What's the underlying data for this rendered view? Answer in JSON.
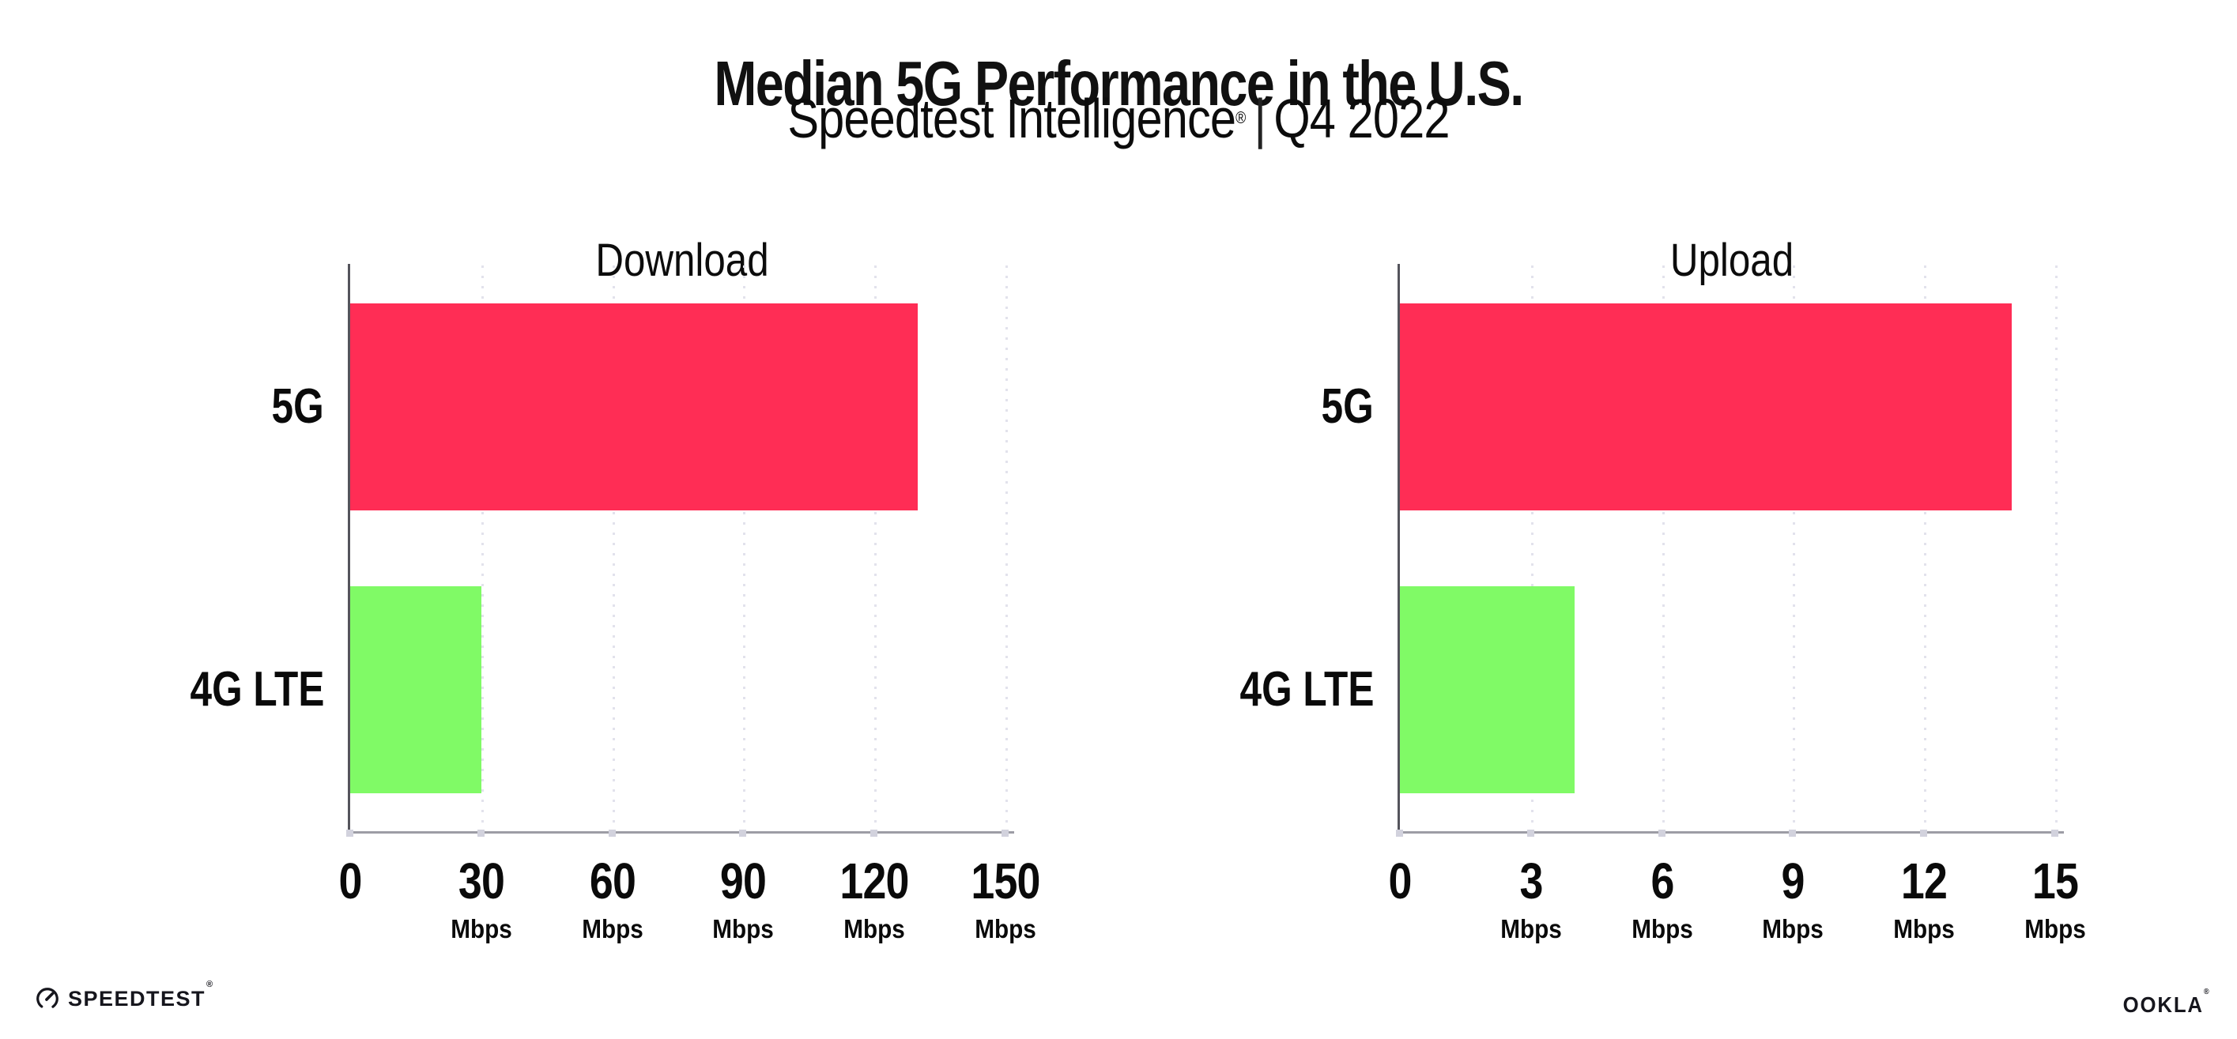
{
  "header": {
    "title": "Median 5G Performance in the U.S.",
    "subtitle_brand": "Speedtest Intelligence",
    "subtitle_reg": "®",
    "subtitle_separator": "|",
    "subtitle_period": "Q4 2022"
  },
  "chart_data": [
    {
      "type": "bar",
      "orientation": "horizontal",
      "title": "Download",
      "categories": [
        "5G",
        "4G LTE"
      ],
      "values": [
        130,
        30
      ],
      "value_unit": "Mbps",
      "xticks": [
        0,
        30,
        60,
        90,
        120,
        150
      ],
      "tick_unit": "Mbps",
      "tick_unit_on_zero": false,
      "xlim": [
        0,
        152
      ],
      "grid": "vertical-dotted",
      "legend": "none",
      "bar_colors": [
        "#ff2d55",
        "#80fa66"
      ]
    },
    {
      "type": "bar",
      "orientation": "horizontal",
      "title": "Upload",
      "categories": [
        "5G",
        "4G LTE"
      ],
      "values": [
        14,
        4
      ],
      "value_unit": "Mbps",
      "xticks": [
        0,
        3,
        6,
        9,
        12,
        15
      ],
      "tick_unit": "Mbps",
      "tick_unit_on_zero": false,
      "xlim": [
        0,
        15.2
      ],
      "grid": "vertical-dotted",
      "legend": "none",
      "bar_colors": [
        "#ff2d55",
        "#80fa66"
      ]
    }
  ],
  "colors": {
    "bar_5g": "#ff2d55",
    "bar_4g_lte": "#80fa66",
    "gridline": "#e2e2ec",
    "axis_spine": "#54545c",
    "axis_baseline": "#9d9da5",
    "tick_dot": "#d2d2dd",
    "text": "#111111",
    "background": "#ffffff"
  },
  "footer": {
    "speedtest_label": "SPEEDTEST",
    "speedtest_reg": "®",
    "ookla_label": "OOKLA",
    "ookla_reg": "®"
  }
}
